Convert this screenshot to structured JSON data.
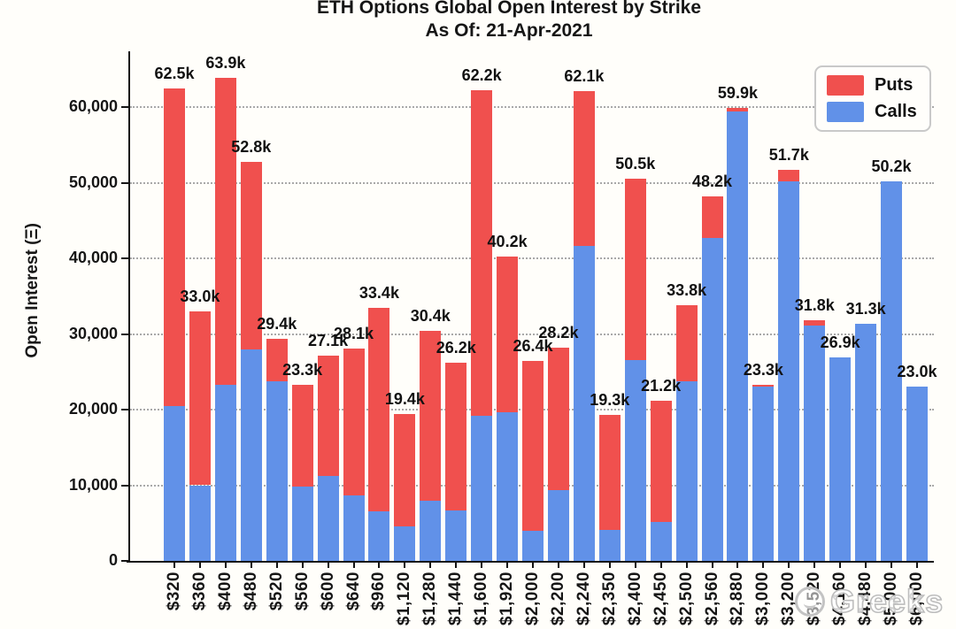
{
  "title": {
    "line1": "ETH Options Global Open Interest by Strike",
    "line2": "As Of: 21-Apr-2021"
  },
  "y_axis": {
    "label": "Open Interest (Ξ)",
    "tick_labels": [
      "0",
      "10,000",
      "20,000",
      "30,000",
      "40,000",
      "50,000",
      "60,000"
    ]
  },
  "legend": {
    "items": [
      {
        "label": "Puts",
        "color": "#F0504E"
      },
      {
        "label": "Calls",
        "color": "#6191E8"
      }
    ]
  },
  "watermark": {
    "text": "Greeks"
  },
  "colors": {
    "puts": "#F0504E",
    "calls": "#6191E8",
    "axis": "#141414",
    "gridline": "#a9a9a9",
    "text": "#161616",
    "background": "#fffefa"
  },
  "chart_data": {
    "type": "bar",
    "stacked": true,
    "title": "ETH Options Global Open Interest by Strike — As Of: 21-Apr-2021",
    "xlabel": "Strike",
    "ylabel": "Open Interest (Ξ)",
    "ylim": [
      0,
      67000
    ],
    "grid": "horizontal dotted at every 10,000",
    "legend_position": "upper right",
    "categories": [
      "$320",
      "$360",
      "$400",
      "$480",
      "$520",
      "$560",
      "$600",
      "$640",
      "$960",
      "$1,120",
      "$1,280",
      "$1,440",
      "$1,600",
      "$1,920",
      "$2,000",
      "$2,200",
      "$2,240",
      "$2,350",
      "$2,400",
      "$2,450",
      "$2,500",
      "$2,560",
      "$2,880",
      "$3,000",
      "$3,200",
      "$3,520",
      "$4,160",
      "$4,480",
      "$5,000",
      "$6,000"
    ],
    "series": [
      {
        "name": "Calls",
        "color": "#6191E8",
        "values": [
          20500,
          10000,
          23300,
          28000,
          23700,
          9800,
          11200,
          8600,
          6600,
          4600,
          8000,
          6700,
          19200,
          19700,
          4000,
          9300,
          41600,
          4100,
          26500,
          5200,
          23700,
          42700,
          59400,
          23000,
          50200,
          31100,
          26900,
          31300,
          50200,
          23000
        ]
      },
      {
        "name": "Puts",
        "color": "#F0504E",
        "values": [
          42000,
          23000,
          40600,
          24800,
          5700,
          13500,
          15900,
          19500,
          26800,
          14800,
          22400,
          19500,
          43000,
          20500,
          22400,
          18900,
          20500,
          15200,
          24000,
          16000,
          10100,
          5500,
          500,
          300,
          1500,
          700,
          0,
          0,
          0,
          0
        ]
      }
    ],
    "total_labels": [
      "62.5k",
      "33.0k",
      "63.9k",
      "52.8k",
      "29.4k",
      "23.3k",
      "27.1k",
      "28.1k",
      "33.4k",
      "19.4k",
      "30.4k",
      "26.2k",
      "62.2k",
      "40.2k",
      "26.4k",
      "28.2k",
      "62.1k",
      "19.3k",
      "50.5k",
      "21.2k",
      "33.8k",
      "48.2k",
      "59.9k",
      "23.3k",
      "51.7k",
      "31.8k",
      "26.9k",
      "31.3k",
      "50.2k",
      "23.0k"
    ]
  }
}
